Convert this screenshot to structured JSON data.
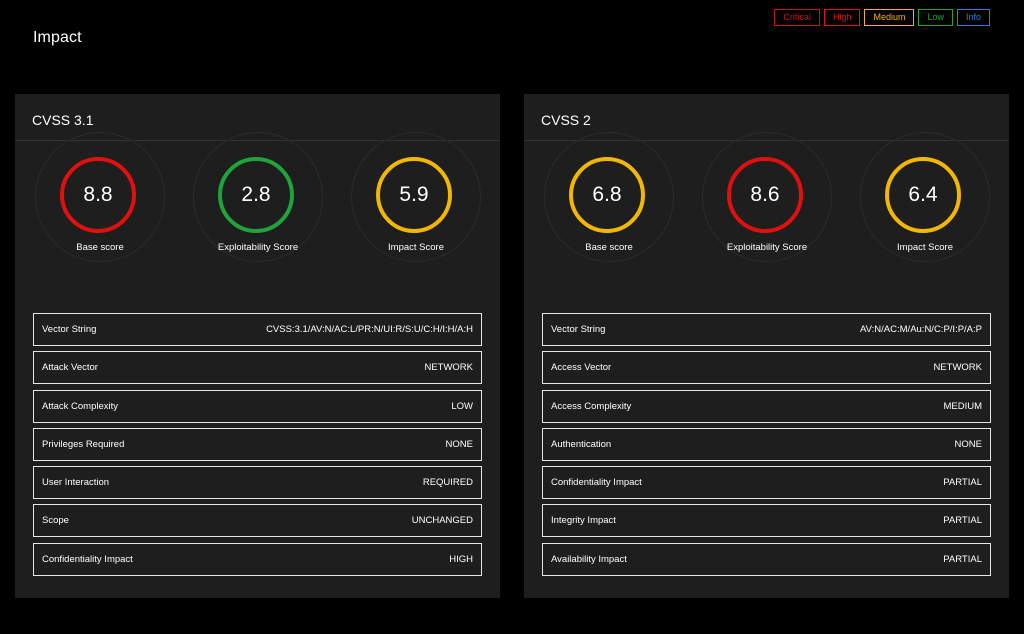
{
  "page_title": "Impact",
  "legend": [
    {
      "label": "Critical",
      "color": "#c0181c"
    },
    {
      "label": "High",
      "color": "#e0141c"
    },
    {
      "label": "Medium",
      "color": "#f2b705"
    },
    {
      "label": "Low",
      "color": "#1fa33a"
    },
    {
      "label": "Info",
      "color": "#2f7fd1"
    }
  ],
  "cvss31": {
    "title": "CVSS 3.1",
    "scores": [
      {
        "value": "8.8",
        "label": "Base score",
        "severity": "red"
      },
      {
        "value": "2.8",
        "label": "Exploitability Score",
        "severity": "green"
      },
      {
        "value": "5.9",
        "label": "Impact Score",
        "severity": "yellow"
      }
    ],
    "rows": [
      {
        "key": "Vector String",
        "value": "CVSS:3.1/AV:N/AC:L/PR:N/UI:R/S:U/C:H/I:H/A:H"
      },
      {
        "key": "Attack Vector",
        "value": "NETWORK"
      },
      {
        "key": "Attack Complexity",
        "value": "LOW"
      },
      {
        "key": "Privileges Required",
        "value": "NONE"
      },
      {
        "key": "User Interaction",
        "value": "REQUIRED"
      },
      {
        "key": "Scope",
        "value": "UNCHANGED"
      },
      {
        "key": "Confidentiality Impact",
        "value": "HIGH"
      }
    ]
  },
  "cvss2": {
    "title": "CVSS 2",
    "scores": [
      {
        "value": "6.8",
        "label": "Base score",
        "severity": "yellow"
      },
      {
        "value": "8.6",
        "label": "Exploitability Score",
        "severity": "red"
      },
      {
        "value": "6.4",
        "label": "Impact Score",
        "severity": "yellow"
      }
    ],
    "rows": [
      {
        "key": "Vector String",
        "value": "AV:N/AC:M/Au:N/C:P/I:P/A:P"
      },
      {
        "key": "Access Vector",
        "value": "NETWORK"
      },
      {
        "key": "Access Complexity",
        "value": "MEDIUM"
      },
      {
        "key": "Authentication",
        "value": "NONE"
      },
      {
        "key": "Confidentiality Impact",
        "value": "PARTIAL"
      },
      {
        "key": "Integrity Impact",
        "value": "PARTIAL"
      },
      {
        "key": "Availability Impact",
        "value": "PARTIAL"
      }
    ]
  }
}
